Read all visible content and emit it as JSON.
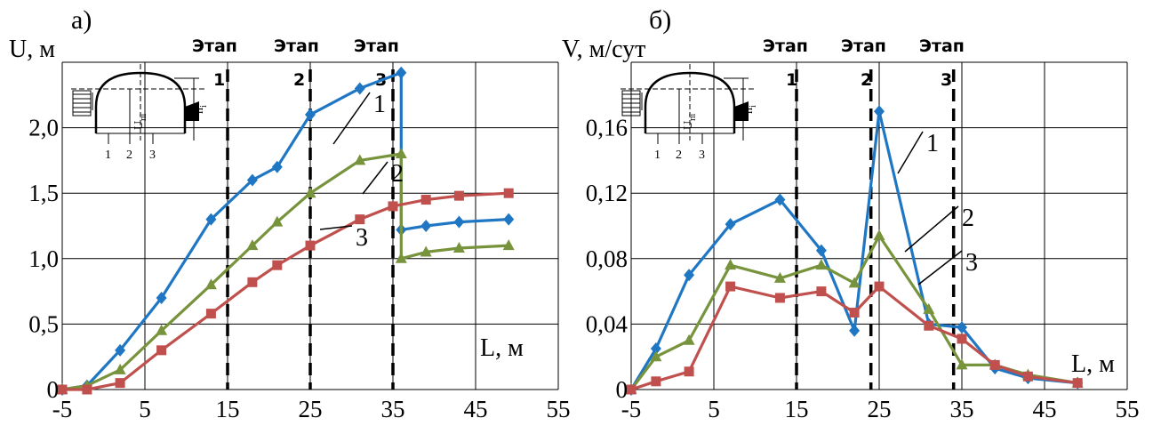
{
  "chart_data": [
    {
      "type": "line",
      "panel_label": "а)",
      "xlabel": "L, м",
      "ylabel": "U, м",
      "xlim": [
        -5,
        55
      ],
      "ylim": [
        0,
        2.5
      ],
      "xticks": [
        -5,
        5,
        15,
        25,
        35,
        45,
        55
      ],
      "xtick_labels": [
        "-5",
        "5",
        "15",
        "25",
        "35",
        "45",
        "55"
      ],
      "yticks": [
        0,
        0.5,
        1.0,
        1.5,
        2.0
      ],
      "ytick_labels": [
        "0",
        "0,5",
        "1,0",
        "1,5",
        "2,0"
      ],
      "grid": true,
      "stages": [
        {
          "x": 15,
          "label": "Этап",
          "num": "1"
        },
        {
          "x": 25,
          "label": "Этап",
          "num": "2"
        },
        {
          "x": 35,
          "label": "Этап",
          "num": "3"
        }
      ],
      "series": [
        {
          "name": "1",
          "color": "#1f77c4",
          "marker": "diamond",
          "segments": [
            [
              [
                -5,
                0
              ],
              [
                -2,
                0.03
              ],
              [
                2,
                0.3
              ],
              [
                7,
                0.7
              ],
              [
                13,
                1.3
              ],
              [
                18,
                1.6
              ],
              [
                21,
                1.7
              ],
              [
                25,
                2.1
              ],
              [
                31,
                2.3
              ],
              [
                36,
                2.42
              ],
              [
                36,
                1.22
              ],
              [
                39,
                1.25
              ],
              [
                43,
                1.28
              ],
              [
                49,
                1.3
              ]
            ]
          ]
        },
        {
          "name": "2",
          "color": "#77933c",
          "marker": "triangle",
          "segments": [
            [
              [
                -5,
                0
              ],
              [
                -2,
                0.03
              ],
              [
                2,
                0.15
              ],
              [
                7,
                0.45
              ],
              [
                13,
                0.8
              ],
              [
                18,
                1.1
              ],
              [
                21,
                1.28
              ],
              [
                25,
                1.5
              ],
              [
                31,
                1.75
              ],
              [
                36,
                1.8
              ],
              [
                36,
                1.0
              ],
              [
                39,
                1.05
              ],
              [
                43,
                1.08
              ],
              [
                49,
                1.1
              ]
            ]
          ]
        },
        {
          "name": "3",
          "color": "#c0504d",
          "marker": "square",
          "segments": [
            [
              [
                -5,
                0
              ],
              [
                -2,
                0
              ],
              [
                2,
                0.05
              ],
              [
                7,
                0.3
              ],
              [
                13,
                0.58
              ],
              [
                18,
                0.82
              ],
              [
                21,
                0.95
              ],
              [
                25,
                1.1
              ],
              [
                31,
                1.3
              ],
              [
                35,
                1.4
              ],
              [
                39,
                1.45
              ],
              [
                43,
                1.48
              ],
              [
                49,
                1.5
              ]
            ]
          ]
        }
      ]
    },
    {
      "type": "line",
      "panel_label": "б)",
      "xlabel": "L, м",
      "ylabel": "V, м/сут",
      "xlim": [
        -5,
        55
      ],
      "ylim": [
        0,
        0.2
      ],
      "xticks": [
        -5,
        5,
        15,
        25,
        35,
        45,
        55
      ],
      "xtick_labels": [
        "-5",
        "5",
        "15",
        "25",
        "35",
        "45",
        "55"
      ],
      "yticks": [
        0,
        0.04,
        0.08,
        0.12,
        0.16
      ],
      "ytick_labels": [
        "0",
        "0,04",
        "0,08",
        "0,12",
        "0,16"
      ],
      "grid": true,
      "stages": [
        {
          "x": 15,
          "label": "Этап",
          "num": "1"
        },
        {
          "x": 24,
          "label": "Этап",
          "num": "2"
        },
        {
          "x": 34,
          "label": "Этап",
          "num": "3"
        }
      ],
      "series": [
        {
          "name": "1",
          "color": "#1f77c4",
          "marker": "diamond",
          "segments": [
            [
              [
                -5,
                0
              ],
              [
                -2,
                0.025
              ],
              [
                2,
                0.07
              ],
              [
                7,
                0.101
              ],
              [
                13,
                0.116
              ],
              [
                18,
                0.085
              ],
              [
                22,
                0.036
              ],
              [
                25,
                0.17
              ],
              [
                31,
                0.04
              ],
              [
                35,
                0.038
              ],
              [
                39,
                0.013
              ],
              [
                43,
                0.007
              ],
              [
                49,
                0.004
              ]
            ]
          ]
        },
        {
          "name": "2",
          "color": "#77933c",
          "marker": "triangle",
          "segments": [
            [
              [
                -5,
                0
              ],
              [
                -2,
                0.02
              ],
              [
                2,
                0.03
              ],
              [
                7,
                0.076
              ],
              [
                13,
                0.068
              ],
              [
                18,
                0.076
              ],
              [
                22,
                0.065
              ],
              [
                25,
                0.094
              ],
              [
                31,
                0.049
              ],
              [
                35,
                0.015
              ],
              [
                39,
                0.015
              ],
              [
                43,
                0.009
              ],
              [
                49,
                0.004
              ]
            ]
          ]
        },
        {
          "name": "3",
          "color": "#c0504d",
          "marker": "square",
          "segments": [
            [
              [
                -5,
                0
              ],
              [
                -2,
                0.005
              ],
              [
                2,
                0.011
              ],
              [
                7,
                0.063
              ],
              [
                13,
                0.056
              ],
              [
                18,
                0.06
              ],
              [
                22,
                0.047
              ],
              [
                25,
                0.063
              ],
              [
                31,
                0.039
              ],
              [
                35,
                0.031
              ],
              [
                39,
                0.015
              ],
              [
                43,
                0.008
              ],
              [
                49,
                0.004
              ]
            ]
          ]
        }
      ]
    }
  ],
  "inset": {
    "u_label": "U",
    "u_sub": "пi",
    "h_label": "h",
    "h_sub": "i",
    "points": [
      "1",
      "2",
      "3"
    ]
  }
}
